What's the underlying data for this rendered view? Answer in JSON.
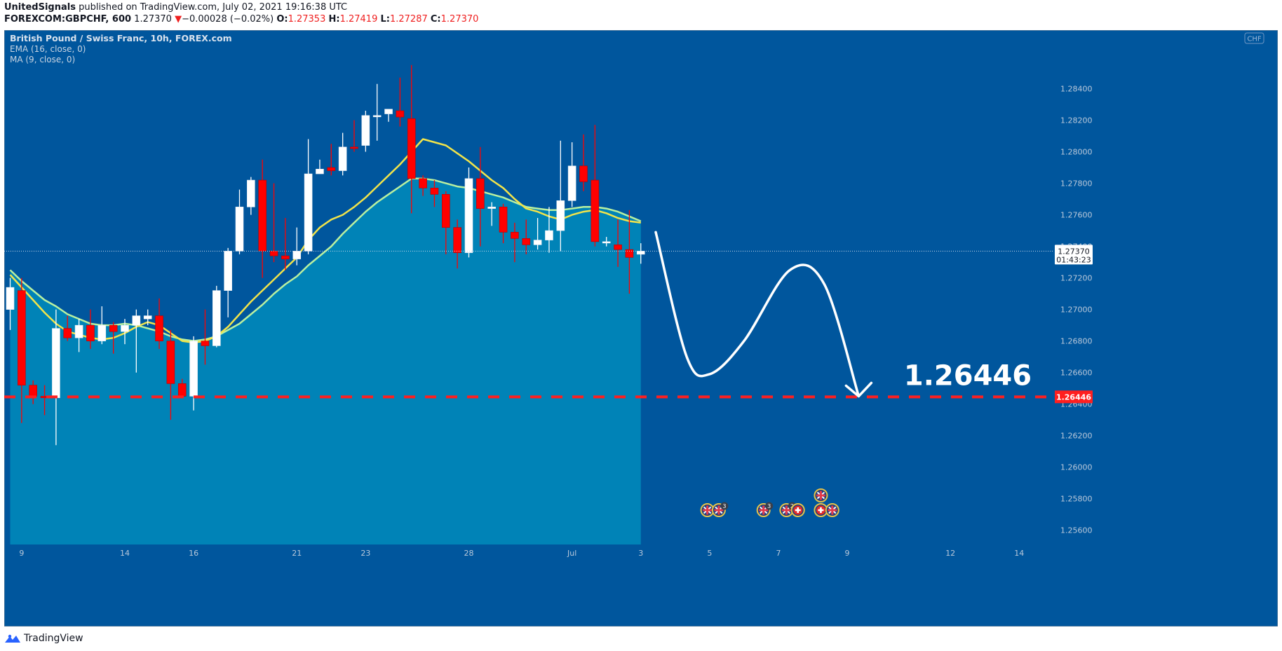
{
  "header": {
    "author": "UnitedSignals",
    "published_text": "published on TradingView.com, July 02, 2021 19:16:38 UTC",
    "symbol": "FOREXCOM:GBPCHF, 600",
    "last": "1.27370",
    "change_arrow": "▼",
    "change": "−0.00028 (−0.02%)",
    "o_label": "O:",
    "o": "1.27353",
    "h_label": "H:",
    "h": "1.27419",
    "l_label": "L:",
    "l": "1.27287",
    "c_label": "C:",
    "c": "1.27370"
  },
  "legend": {
    "title": "British Pound / Swiss Franc, 10h, FOREX.com",
    "ema": "EMA (16, close, 0)",
    "ma": "MA (9, close, 0)"
  },
  "footer": {
    "brand": "TradingView",
    "logo_icon": "tradingview-logo-icon"
  },
  "colors": {
    "background": "#00569d",
    "area": "#0083b7",
    "up_candle": "#ffffff",
    "down_candle": "#ff0000",
    "ma_line": "#f2e44a",
    "ema_line": "#b9f0a0",
    "target_line": "#ff1f1f",
    "price_label_bg": "#ffffff",
    "target_label_bg": "#ff1f1f"
  },
  "chart_data": {
    "type": "candlestick",
    "title": "British Pound / Swiss Franc, 10h, FOREX.com",
    "currency": "CHF",
    "y_ticks": [
      "1.28400",
      "1.28200",
      "1.28000",
      "1.27800",
      "1.27600",
      "1.27400",
      "1.27200",
      "1.27000",
      "1.26800",
      "1.26600",
      "1.26400",
      "1.26200",
      "1.26000",
      "1.25800",
      "1.25600"
    ],
    "ylim": [
      1.2551,
      1.2858
    ],
    "x_ticks": [
      {
        "label": "9",
        "index": 1
      },
      {
        "label": "14",
        "index": 10
      },
      {
        "label": "16",
        "index": 16
      },
      {
        "label": "21",
        "index": 25
      },
      {
        "label": "23",
        "index": 31
      },
      {
        "label": "28",
        "index": 40
      },
      {
        "label": "Jul",
        "index": 49
      },
      {
        "label": "3",
        "index": 55
      },
      {
        "label": "5",
        "index": 61
      },
      {
        "label": "7",
        "index": 67
      },
      {
        "label": "9",
        "index": 73
      },
      {
        "label": "12",
        "index": 82
      },
      {
        "label": "14",
        "index": 88
      }
    ],
    "candles": [
      {
        "o": 1.27,
        "h": 1.272,
        "l": 1.2687,
        "c": 1.2714
      },
      {
        "o": 1.2712,
        "h": 1.272,
        "l": 1.2628,
        "c": 1.2652
      },
      {
        "o": 1.2652,
        "h": 1.2655,
        "l": 1.264,
        "c": 1.2645
      },
      {
        "o": 1.2645,
        "h": 1.2652,
        "l": 1.2633,
        "c": 1.2644
      },
      {
        "o": 1.2644,
        "h": 1.27,
        "l": 1.2614,
        "c": 1.2688
      },
      {
        "o": 1.2688,
        "h": 1.2696,
        "l": 1.268,
        "c": 1.2682
      },
      {
        "o": 1.2682,
        "h": 1.2694,
        "l": 1.2673,
        "c": 1.269
      },
      {
        "o": 1.269,
        "h": 1.27,
        "l": 1.2675,
        "c": 1.268
      },
      {
        "o": 1.268,
        "h": 1.2702,
        "l": 1.2678,
        "c": 1.269
      },
      {
        "o": 1.269,
        "h": 1.2692,
        "l": 1.2672,
        "c": 1.2686
      },
      {
        "o": 1.2686,
        "h": 1.2694,
        "l": 1.2678,
        "c": 1.269
      },
      {
        "o": 1.269,
        "h": 1.27,
        "l": 1.266,
        "c": 1.2696
      },
      {
        "o": 1.2694,
        "h": 1.27,
        "l": 1.269,
        "c": 1.2696
      },
      {
        "o": 1.2696,
        "h": 1.2707,
        "l": 1.2675,
        "c": 1.268
      },
      {
        "o": 1.268,
        "h": 1.2687,
        "l": 1.263,
        "c": 1.2653
      },
      {
        "o": 1.2653,
        "h": 1.2656,
        "l": 1.2645,
        "c": 1.2645
      },
      {
        "o": 1.2645,
        "h": 1.2683,
        "l": 1.2636,
        "c": 1.268
      },
      {
        "o": 1.268,
        "h": 1.27,
        "l": 1.2665,
        "c": 1.2677
      },
      {
        "o": 1.2677,
        "h": 1.2715,
        "l": 1.2676,
        "c": 1.2712
      },
      {
        "o": 1.2712,
        "h": 1.2739,
        "l": 1.2695,
        "c": 1.2737
      },
      {
        "o": 1.2737,
        "h": 1.2776,
        "l": 1.2735,
        "c": 1.2765
      },
      {
        "o": 1.2765,
        "h": 1.2784,
        "l": 1.276,
        "c": 1.2782
      },
      {
        "o": 1.2782,
        "h": 1.2795,
        "l": 1.272,
        "c": 1.2737
      },
      {
        "o": 1.2737,
        "h": 1.278,
        "l": 1.273,
        "c": 1.2734
      },
      {
        "o": 1.2734,
        "h": 1.2758,
        "l": 1.2725,
        "c": 1.2732
      },
      {
        "o": 1.2732,
        "h": 1.2752,
        "l": 1.2728,
        "c": 1.2737
      },
      {
        "o": 1.2737,
        "h": 1.2808,
        "l": 1.2735,
        "c": 1.2786
      },
      {
        "o": 1.2786,
        "h": 1.2795,
        "l": 1.2786,
        "c": 1.2789
      },
      {
        "o": 1.279,
        "h": 1.2805,
        "l": 1.2785,
        "c": 1.2788
      },
      {
        "o": 1.2788,
        "h": 1.2812,
        "l": 1.2785,
        "c": 1.2803
      },
      {
        "o": 1.2803,
        "h": 1.282,
        "l": 1.28,
        "c": 1.2802
      },
      {
        "o": 1.2804,
        "h": 1.2826,
        "l": 1.28,
        "c": 1.2823
      },
      {
        "o": 1.2823,
        "h": 1.2843,
        "l": 1.2807,
        "c": 1.2823
      },
      {
        "o": 1.2824,
        "h": 1.2827,
        "l": 1.2819,
        "c": 1.2827
      },
      {
        "o": 1.2826,
        "h": 1.2847,
        "l": 1.2816,
        "c": 1.2822
      },
      {
        "o": 1.2821,
        "h": 1.2855,
        "l": 1.2761,
        "c": 1.2783
      },
      {
        "o": 1.2783,
        "h": 1.2785,
        "l": 1.2772,
        "c": 1.2777
      },
      {
        "o": 1.2777,
        "h": 1.2782,
        "l": 1.2765,
        "c": 1.2773
      },
      {
        "o": 1.2773,
        "h": 1.2775,
        "l": 1.2735,
        "c": 1.2752
      },
      {
        "o": 1.2752,
        "h": 1.2757,
        "l": 1.2726,
        "c": 1.2736
      },
      {
        "o": 1.2736,
        "h": 1.279,
        "l": 1.2733,
        "c": 1.2783
      },
      {
        "o": 1.2783,
        "h": 1.2803,
        "l": 1.274,
        "c": 1.2764
      },
      {
        "o": 1.2764,
        "h": 1.2768,
        "l": 1.2753,
        "c": 1.2765
      },
      {
        "o": 1.2765,
        "h": 1.2767,
        "l": 1.2742,
        "c": 1.2749
      },
      {
        "o": 1.2749,
        "h": 1.2755,
        "l": 1.273,
        "c": 1.2745
      },
      {
        "o": 1.2745,
        "h": 1.2757,
        "l": 1.2735,
        "c": 1.2741
      },
      {
        "o": 1.2741,
        "h": 1.2758,
        "l": 1.2738,
        "c": 1.2744
      },
      {
        "o": 1.2744,
        "h": 1.2765,
        "l": 1.2736,
        "c": 1.275
      },
      {
        "o": 1.275,
        "h": 1.2807,
        "l": 1.2737,
        "c": 1.2769
      },
      {
        "o": 1.2769,
        "h": 1.2806,
        "l": 1.2765,
        "c": 1.2791
      },
      {
        "o": 1.2791,
        "h": 1.2811,
        "l": 1.2775,
        "c": 1.2781
      },
      {
        "o": 1.2782,
        "h": 1.2817,
        "l": 1.274,
        "c": 1.2743
      },
      {
        "o": 1.2743,
        "h": 1.2746,
        "l": 1.274,
        "c": 1.2743
      },
      {
        "o": 1.2741,
        "h": 1.2757,
        "l": 1.2727,
        "c": 1.2738
      },
      {
        "o": 1.2738,
        "h": 1.2763,
        "l": 1.271,
        "c": 1.2733
      },
      {
        "o": 1.2735,
        "h": 1.2742,
        "l": 1.2729,
        "c": 1.2737
      }
    ],
    "ma_9": [
      1.2722,
      1.2714,
      1.2706,
      1.2698,
      1.2691,
      1.2686,
      1.2684,
      1.2682,
      1.2681,
      1.2682,
      1.2685,
      1.2689,
      1.2692,
      1.269,
      1.2685,
      1.268,
      1.2679,
      1.268,
      1.2683,
      1.2689,
      1.2697,
      1.2705,
      1.2712,
      1.2719,
      1.2726,
      1.2733,
      1.2744,
      1.2752,
      1.2757,
      1.276,
      1.2765,
      1.2771,
      1.2778,
      1.2785,
      1.2792,
      1.28,
      1.2808,
      1.2806,
      1.2804,
      1.2799,
      1.2794,
      1.2788,
      1.2782,
      1.2777,
      1.277,
      1.2764,
      1.2762,
      1.2759,
      1.2757,
      1.276,
      1.2762,
      1.2763,
      1.2761,
      1.2758,
      1.2756,
      1.2755
    ],
    "ema_16": [
      1.2725,
      1.2718,
      1.2712,
      1.2706,
      1.2702,
      1.2697,
      1.2694,
      1.2691,
      1.269,
      1.269,
      1.2691,
      1.269,
      1.2688,
      1.2686,
      1.2683,
      1.2681,
      1.268,
      1.2681,
      1.2683,
      1.2687,
      1.2691,
      1.2697,
      1.2703,
      1.271,
      1.2716,
      1.2721,
      1.2728,
      1.2734,
      1.274,
      1.2748,
      1.2755,
      1.2762,
      1.2768,
      1.2773,
      1.2778,
      1.2783,
      1.2783,
      1.2782,
      1.278,
      1.2778,
      1.2777,
      1.2775,
      1.2773,
      1.2771,
      1.2768,
      1.2765,
      1.2764,
      1.2763,
      1.2763,
      1.2764,
      1.2765,
      1.2765,
      1.2764,
      1.2762,
      1.2759,
      1.2756
    ],
    "last_price": "1.27370",
    "last_price_value": 1.2737,
    "countdown": "01:43:23",
    "target_price": "1.26446",
    "target_value": 1.26446,
    "projection_points": [
      {
        "index": 56.3,
        "price": 1.2749
      },
      {
        "index": 59,
        "price": 1.267
      },
      {
        "index": 61,
        "price": 1.2659
      },
      {
        "index": 64,
        "price": 1.268
      },
      {
        "index": 68,
        "price": 1.2725
      },
      {
        "index": 71,
        "price": 1.2716
      },
      {
        "index": 74,
        "price": 1.2645
      }
    ],
    "events": [
      {
        "index": 60.8,
        "row": 0,
        "flag": "gb"
      },
      {
        "index": 61.8,
        "row": 0,
        "flag": "gb",
        "count": "3"
      },
      {
        "index": 65.7,
        "row": 0,
        "flag": "gb",
        "count": "3"
      },
      {
        "index": 67.7,
        "row": 0,
        "flag": "gb",
        "count": "2"
      },
      {
        "index": 68.7,
        "row": 0,
        "flag": "ch"
      },
      {
        "index": 70.7,
        "row": 1,
        "flag": "gb"
      },
      {
        "index": 70.7,
        "row": 0,
        "flag": "ch"
      },
      {
        "index": 71.7,
        "row": 0,
        "flag": "gb"
      }
    ],
    "grid": false
  }
}
